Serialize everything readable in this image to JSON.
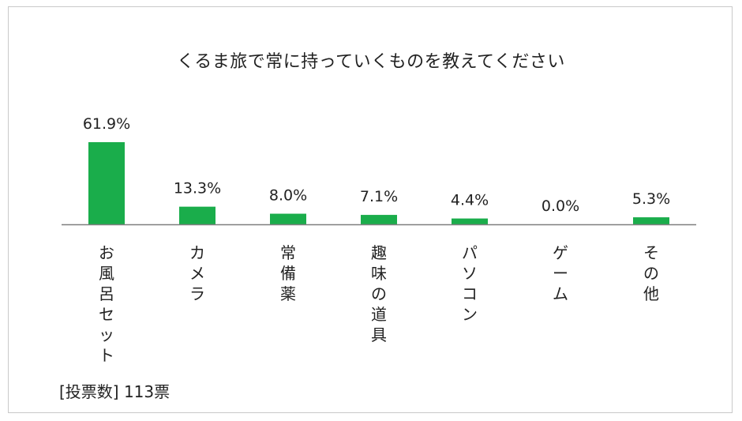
{
  "chart_data": {
    "type": "bar",
    "title": "くるま旅で常に持っていくものを教えてください",
    "categories": [
      "お風呂セット",
      "カメラ",
      "常備薬",
      "趣味の道具",
      "パソコン",
      "ゲーム",
      "その他"
    ],
    "values": [
      61.9,
      13.3,
      8.0,
      7.1,
      4.4,
      0.0,
      5.3
    ],
    "value_labels": [
      "61.9%",
      "13.3%",
      "8.0%",
      "7.1%",
      "4.4%",
      "0.0%",
      "5.3%"
    ],
    "ylim": [
      0,
      70
    ],
    "grid": false,
    "bar_color": "#1aad4b",
    "axis_color": "#7f7f7f"
  },
  "footer": {
    "votes_label": "[投票数] 113票"
  }
}
